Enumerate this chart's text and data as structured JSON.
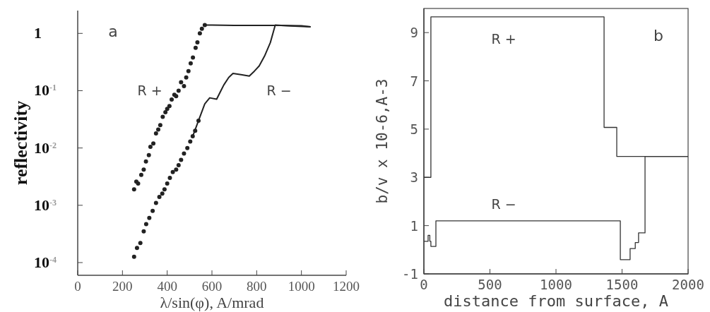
{
  "chart_data": [
    {
      "type": "scatter",
      "xlabel": "λ/sin(φ), A/mrad",
      "ylabel": "reflectivity",
      "log": "y",
      "xlim": [
        0,
        1200
      ],
      "ylim": [
        6e-05,
        2.5
      ],
      "xticks": [
        0,
        200,
        400,
        600,
        800,
        1000,
        1200
      ],
      "yticks": [
        {
          "value": 1,
          "label": "1"
        },
        {
          "value": 0.1,
          "label": "10$^{-1}$"
        },
        {
          "value": 0.01,
          "label": "10$^{-2}$"
        },
        {
          "value": 0.001,
          "label": "10$^{-3}$"
        },
        {
          "value": 0.0001,
          "label": "10$^{-4}$"
        }
      ],
      "marker": "circle",
      "series": [
        {
          "color": "#222222",
          "x": [
            252,
            262,
            270,
            284,
            295,
            305,
            318,
            325,
            338,
            350,
            360,
            369,
            380,
            392,
            400,
            410,
            420,
            432,
            440,
            451,
            462,
            475,
            485,
            495,
            505,
            515,
            527,
            535,
            546,
            555,
            568
          ],
          "values": [
            0.0019,
            0.0026,
            0.0024,
            0.0034,
            0.0042,
            0.0058,
            0.0075,
            0.0105,
            0.012,
            0.018,
            0.021,
            0.025,
            0.035,
            0.042,
            0.048,
            0.054,
            0.07,
            0.085,
            0.08,
            0.1,
            0.14,
            0.12,
            0.17,
            0.22,
            0.3,
            0.38,
            0.56,
            0.7,
            1.0,
            1.2,
            1.4
          ]
        },
        {
          "type": "line",
          "color": "#222222",
          "marker": "none",
          "x": [
            568,
            600,
            700,
            800,
            900,
            1000,
            1041
          ],
          "values": [
            1.4,
            1.4,
            1.38,
            1.38,
            1.38,
            1.36,
            1.3
          ]
        },
        {
          "color": "#222222",
          "x": [
            252,
            265,
            280,
            295,
            306,
            320,
            335,
            350,
            365,
            378,
            388,
            400,
            412,
            425,
            440,
            451,
            462,
            475,
            490,
            503,
            514,
            525,
            540
          ],
          "values": [
            0.000126,
            0.00018,
            0.00022,
            0.00035,
            0.00047,
            0.0006,
            0.0008,
            0.0011,
            0.0014,
            0.0016,
            0.0019,
            0.0024,
            0.003,
            0.0038,
            0.0042,
            0.005,
            0.0062,
            0.008,
            0.01,
            0.013,
            0.016,
            0.02,
            0.03
          ]
        },
        {
          "type": "line",
          "color": "#222222",
          "marker": "none",
          "x": [
            514,
            540,
            568,
            590,
            621,
            640,
            653,
            675,
            694,
            730,
            767,
            790,
            811,
            835,
            861,
            883,
            950,
            1041
          ],
          "values": [
            0.016,
            0.03,
            0.059,
            0.075,
            0.071,
            0.1,
            0.126,
            0.17,
            0.2,
            0.19,
            0.18,
            0.22,
            0.27,
            0.4,
            0.69,
            1.4,
            1.35,
            1.3
          ]
        }
      ],
      "annotations": [
        "a",
        "R +",
        "R −"
      ]
    },
    {
      "type": "step",
      "xlabel": "distance from surface, A",
      "ylabel": "b/v x 10-6,A-3",
      "xlim": [
        0,
        2000
      ],
      "ylim": [
        -1,
        10
      ],
      "xticks": [
        0,
        500,
        1000,
        1500,
        2000
      ],
      "yticks": [
        -1,
        1,
        3,
        5,
        7,
        9
      ],
      "marker": "none",
      "series": [
        {
          "color": "#333333",
          "x": [
            0,
            53,
            1364,
            1460,
            2000
          ],
          "values": [
            3,
            9.65,
            5.07,
            3.87,
            3.87
          ]
        },
        {
          "color": "#333333",
          "x": [
            0,
            32,
            45,
            53,
            91,
            1487,
            1561,
            1600,
            1625,
            1674,
            2000
          ],
          "values": [
            0.35,
            0.6,
            0.35,
            0.14,
            1.2,
            -0.41,
            0.05,
            0.3,
            0.7,
            3.87,
            3.87
          ]
        }
      ],
      "annotations": [
        "b",
        "R +",
        "R −"
      ]
    }
  ]
}
